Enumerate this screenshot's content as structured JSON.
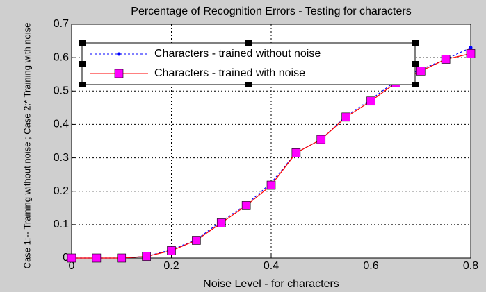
{
  "chart_data": {
    "type": "line",
    "title": "Percentage of Recognition Errors - Testing for characters",
    "xlabel": "Noise Level - for characters",
    "ylabel": "Case 1:-- Training without noise ; Case 2:* Training with noise",
    "x": [
      0,
      0.05,
      0.1,
      0.15,
      0.2,
      0.25,
      0.3,
      0.35,
      0.4,
      0.45,
      0.5,
      0.55,
      0.6,
      0.65,
      0.7,
      0.75,
      0.8
    ],
    "series": [
      {
        "name": "Characters - trained without noise",
        "color": "#0000ff",
        "marker_color": "#0000ff",
        "values": [
          0,
          0,
          0,
          0.005,
          0.025,
          0.055,
          0.11,
          0.16,
          0.225,
          0.315,
          0.355,
          0.425,
          0.475,
          0.53,
          0.565,
          0.595,
          0.63
        ]
      },
      {
        "name": "Characters - trained with noise",
        "color": "#ff0000",
        "marker_color": "#ff00ff",
        "values": [
          0,
          0,
          0,
          0.005,
          0.022,
          0.053,
          0.105,
          0.157,
          0.218,
          0.315,
          0.355,
          0.422,
          0.47,
          0.525,
          0.56,
          0.595,
          0.612
        ]
      }
    ],
    "xlim": [
      0,
      0.8
    ],
    "xticks": [
      0,
      0.2,
      0.4,
      0.6,
      0.8
    ],
    "ylim": [
      0,
      0.7
    ],
    "yticks": [
      0,
      0.1,
      0.2,
      0.3,
      0.4,
      0.5,
      0.6,
      0.7
    ],
    "grid": true
  }
}
